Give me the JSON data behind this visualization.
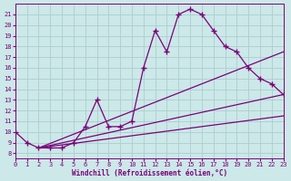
{
  "xlabel": "Windchill (Refroidissement éolien,°C)",
  "background_color": "#cce8e8",
  "grid_color": "#aacece",
  "line_color": "#7b007b",
  "xlim": [
    0,
    23
  ],
  "ylim": [
    7.5,
    22
  ],
  "xticks": [
    0,
    1,
    2,
    3,
    4,
    5,
    6,
    7,
    8,
    9,
    10,
    11,
    12,
    13,
    14,
    15,
    16,
    17,
    18,
    19,
    20,
    21,
    22,
    23
  ],
  "yticks": [
    8,
    9,
    10,
    11,
    12,
    13,
    14,
    15,
    16,
    17,
    18,
    19,
    20,
    21
  ],
  "main_curve": {
    "x": [
      0,
      1,
      2,
      3,
      4,
      5,
      6,
      7,
      8,
      9,
      10,
      11,
      12,
      13,
      14,
      15,
      16,
      17,
      18,
      19,
      20,
      21,
      22,
      23
    ],
    "y": [
      10.0,
      9.0,
      8.5,
      8.5,
      8.5,
      9.0,
      10.5,
      13.0,
      10.5,
      10.5,
      11.0,
      16.0,
      19.5,
      17.5,
      21.0,
      21.5,
      21.0,
      19.5,
      18.0,
      17.5,
      16.0,
      15.0,
      14.5,
      13.5
    ]
  },
  "straight_lines": [
    {
      "x": [
        2,
        23
      ],
      "y": [
        8.5,
        17.5
      ]
    },
    {
      "x": [
        2,
        23
      ],
      "y": [
        8.5,
        13.5
      ]
    },
    {
      "x": [
        2,
        23
      ],
      "y": [
        8.5,
        11.5
      ]
    }
  ]
}
